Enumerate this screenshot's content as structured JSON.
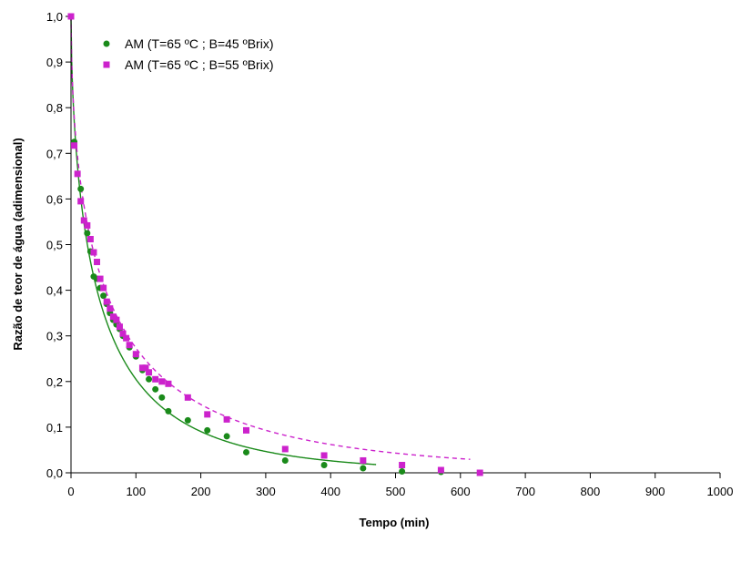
{
  "chart_data": {
    "type": "scatter",
    "title": "",
    "xlabel": "Tempo (min)",
    "ylabel": "Razão de teor de água (adimensional)",
    "xlim": [
      0,
      1000
    ],
    "ylim": [
      0,
      1
    ],
    "x_ticks": [
      0,
      100,
      200,
      300,
      400,
      500,
      600,
      700,
      800,
      900,
      1000
    ],
    "x_tick_labels": [
      "0",
      "100",
      "200",
      "300",
      "400",
      "500",
      "600",
      "700",
      "800",
      "900",
      "1000"
    ],
    "y_ticks": [
      0,
      0.1,
      0.2,
      0.3,
      0.4,
      0.5,
      0.6,
      0.7,
      0.8,
      0.9,
      1.0
    ],
    "y_tick_labels": [
      "0,0",
      "0,1",
      "0,2",
      "0,3",
      "0,4",
      "0,5",
      "0,6",
      "0,7",
      "0,8",
      "0,9",
      "1,0"
    ],
    "grid": false,
    "legend_position": "top-left",
    "series": [
      {
        "name": "AM (T=65 ºC ; B=45 ºBrix)",
        "marker": "circle",
        "color": "#1a8a1a",
        "line_style": "solid",
        "x": [
          0,
          5,
          15,
          25,
          30,
          35,
          40,
          45,
          50,
          55,
          60,
          65,
          70,
          75,
          80,
          90,
          100,
          110,
          120,
          130,
          140,
          150,
          180,
          210,
          240,
          270,
          330,
          390,
          450,
          510,
          570
        ],
        "y": [
          1.0,
          0.725,
          0.622,
          0.525,
          0.485,
          0.43,
          0.425,
          0.405,
          0.388,
          0.37,
          0.35,
          0.335,
          0.325,
          0.315,
          0.3,
          0.275,
          0.255,
          0.225,
          0.205,
          0.183,
          0.165,
          0.135,
          0.115,
          0.093,
          0.08,
          0.045,
          0.027,
          0.017,
          0.01,
          0.003,
          0.002
        ]
      },
      {
        "name": "AM (T=65 ºC ; B=55 ºBrix)",
        "marker": "square",
        "color": "#cc22cc",
        "line_style": "dashed",
        "x": [
          0,
          5,
          10,
          15,
          20,
          25,
          30,
          35,
          40,
          45,
          50,
          55,
          60,
          65,
          70,
          75,
          80,
          85,
          90,
          100,
          110,
          115,
          120,
          130,
          140,
          150,
          180,
          210,
          240,
          270,
          330,
          390,
          450,
          510,
          570,
          630
        ],
        "y": [
          1.0,
          0.717,
          0.655,
          0.595,
          0.553,
          0.542,
          0.512,
          0.483,
          0.462,
          0.425,
          0.405,
          0.375,
          0.36,
          0.342,
          0.335,
          0.32,
          0.305,
          0.295,
          0.28,
          0.26,
          0.23,
          0.23,
          0.22,
          0.205,
          0.2,
          0.195,
          0.165,
          0.128,
          0.117,
          0.093,
          0.052,
          0.038,
          0.027,
          0.017,
          0.006,
          0.0
        ]
      }
    ],
    "fit_curves": [
      {
        "series": "AM (T=65 ºC ; B=45 ºBrix)",
        "model": "Page",
        "k": 0.1,
        "n": 0.6,
        "x_end": 470
      },
      {
        "series": "AM (T=65 ºC ; B=55 ºBrix)",
        "model": "Page",
        "k": 0.103,
        "n": 0.55,
        "x_end": 615
      }
    ]
  }
}
